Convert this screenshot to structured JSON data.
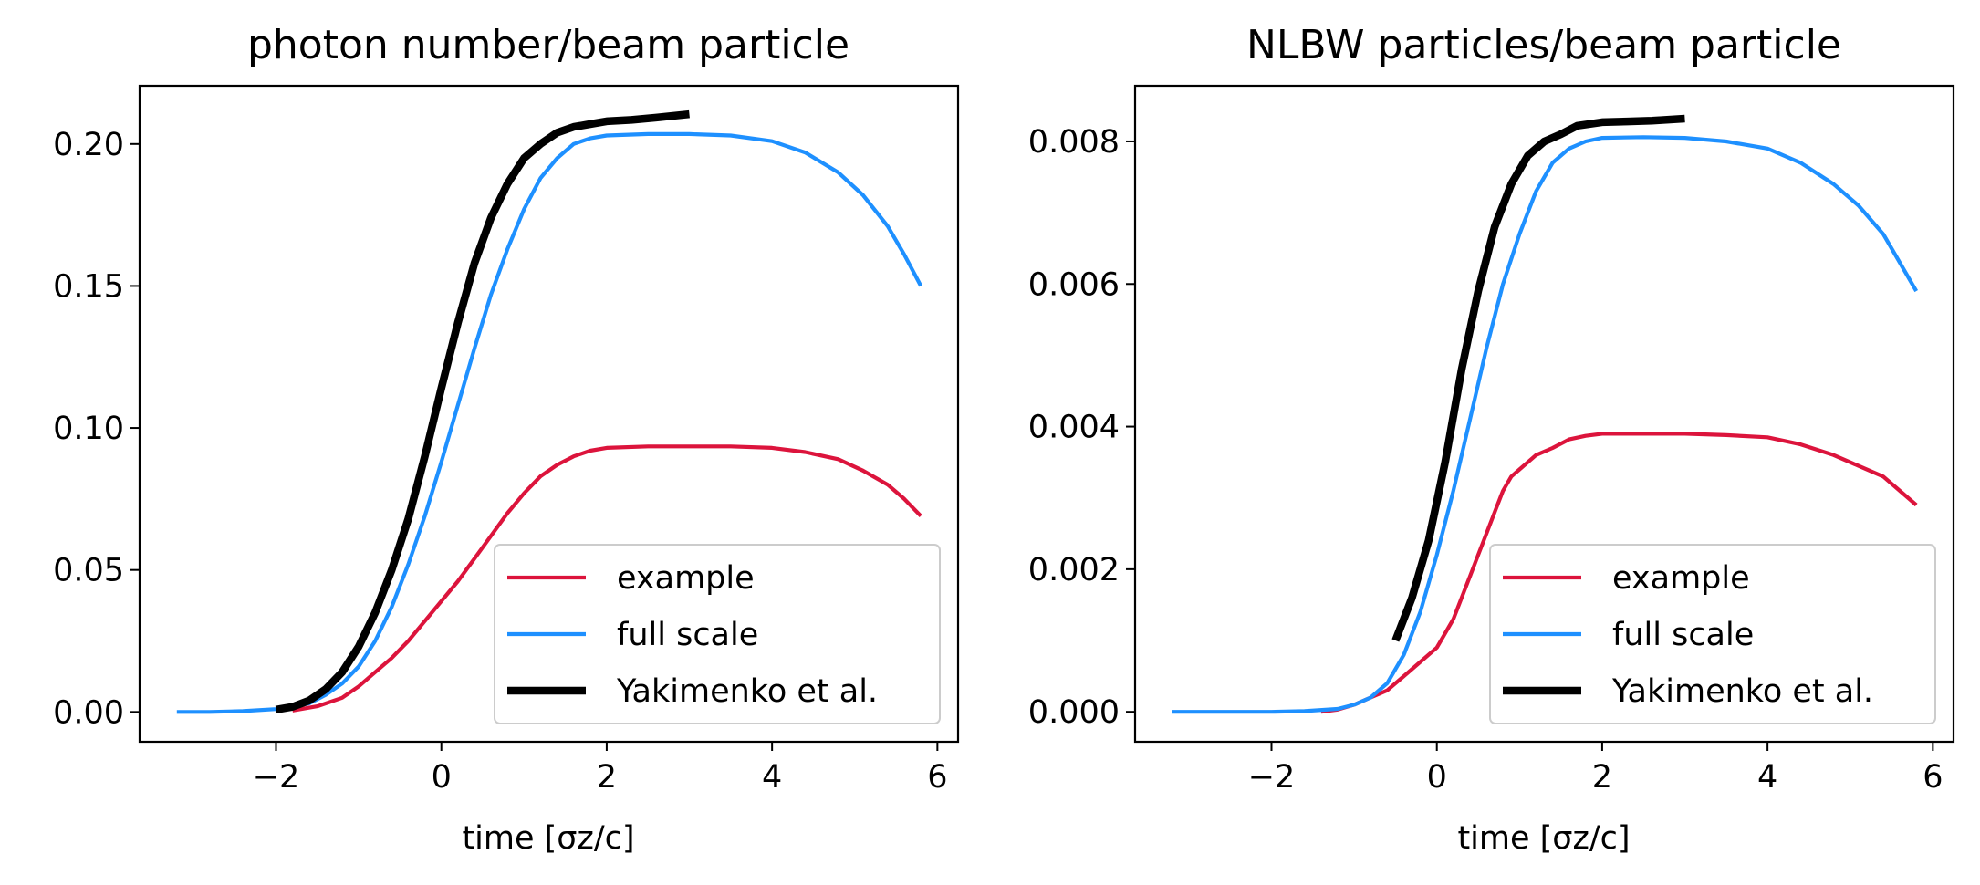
{
  "chart_data": [
    {
      "type": "line",
      "title": "photon number/beam particle",
      "xlabel": "time [σz/c]",
      "ylabel": "",
      "xlim": [
        -3.65,
        6.25
      ],
      "ylim": [
        -0.0105,
        0.2205
      ],
      "xticks": [
        -2,
        0,
        2,
        4,
        6
      ],
      "xtick_labels": [
        "−2",
        "0",
        "2",
        "4",
        "6"
      ],
      "yticks": [
        0.0,
        0.05,
        0.1,
        0.15,
        0.2
      ],
      "ytick_labels": [
        "0.00",
        "0.05",
        "0.10",
        "0.15",
        "0.20"
      ],
      "legend_position": "lower-right",
      "grid": false,
      "series": [
        {
          "name": "example",
          "color": "#dc143c",
          "points": [
            [
              -1.8,
              0.0005
            ],
            [
              -1.5,
              0.002
            ],
            [
              -1.2,
              0.005
            ],
            [
              -1.0,
              0.009
            ],
            [
              -0.8,
              0.014
            ],
            [
              -0.6,
              0.019
            ],
            [
              -0.4,
              0.025
            ],
            [
              -0.2,
              0.032
            ],
            [
              0.0,
              0.039
            ],
            [
              0.2,
              0.046
            ],
            [
              0.4,
              0.054
            ],
            [
              0.6,
              0.062
            ],
            [
              0.8,
              0.07
            ],
            [
              1.0,
              0.077
            ],
            [
              1.2,
              0.083
            ],
            [
              1.4,
              0.087
            ],
            [
              1.6,
              0.09
            ],
            [
              1.8,
              0.092
            ],
            [
              2.0,
              0.093
            ],
            [
              2.5,
              0.0935
            ],
            [
              3.0,
              0.0935
            ],
            [
              3.5,
              0.0935
            ],
            [
              4.0,
              0.093
            ],
            [
              4.4,
              0.0915
            ],
            [
              4.8,
              0.089
            ],
            [
              5.1,
              0.085
            ],
            [
              5.4,
              0.08
            ],
            [
              5.6,
              0.075
            ],
            [
              5.8,
              0.069
            ]
          ]
        },
        {
          "name": "full scale",
          "color": "#1e90ff",
          "points": [
            [
              -3.2,
              0.0
            ],
            [
              -2.8,
              0.0
            ],
            [
              -2.4,
              0.0003
            ],
            [
              -2.0,
              0.001
            ],
            [
              -1.8,
              0.002
            ],
            [
              -1.6,
              0.003
            ],
            [
              -1.4,
              0.006
            ],
            [
              -1.2,
              0.01
            ],
            [
              -1.0,
              0.016
            ],
            [
              -0.8,
              0.025
            ],
            [
              -0.6,
              0.037
            ],
            [
              -0.4,
              0.052
            ],
            [
              -0.2,
              0.069
            ],
            [
              0.0,
              0.088
            ],
            [
              0.2,
              0.108
            ],
            [
              0.4,
              0.128
            ],
            [
              0.6,
              0.147
            ],
            [
              0.8,
              0.163
            ],
            [
              1.0,
              0.177
            ],
            [
              1.2,
              0.188
            ],
            [
              1.4,
              0.195
            ],
            [
              1.6,
              0.2
            ],
            [
              1.8,
              0.202
            ],
            [
              2.0,
              0.203
            ],
            [
              2.5,
              0.2035
            ],
            [
              3.0,
              0.2035
            ],
            [
              3.5,
              0.203
            ],
            [
              4.0,
              0.201
            ],
            [
              4.4,
              0.197
            ],
            [
              4.8,
              0.19
            ],
            [
              5.1,
              0.182
            ],
            [
              5.4,
              0.171
            ],
            [
              5.6,
              0.161
            ],
            [
              5.8,
              0.15
            ]
          ]
        },
        {
          "name": "Yakimenko et al.",
          "color": "#000000",
          "points": [
            [
              -2.0,
              0.0008
            ],
            [
              -1.8,
              0.0018
            ],
            [
              -1.6,
              0.004
            ],
            [
              -1.4,
              0.008
            ],
            [
              -1.2,
              0.014
            ],
            [
              -1.0,
              0.023
            ],
            [
              -0.8,
              0.035
            ],
            [
              -0.6,
              0.05
            ],
            [
              -0.4,
              0.068
            ],
            [
              -0.2,
              0.09
            ],
            [
              0.0,
              0.114
            ],
            [
              0.2,
              0.137
            ],
            [
              0.4,
              0.158
            ],
            [
              0.6,
              0.174
            ],
            [
              0.8,
              0.186
            ],
            [
              1.0,
              0.195
            ],
            [
              1.2,
              0.2
            ],
            [
              1.4,
              0.204
            ],
            [
              1.6,
              0.206
            ],
            [
              1.8,
              0.207
            ],
            [
              2.0,
              0.208
            ],
            [
              2.3,
              0.2085
            ],
            [
              2.6,
              0.2093
            ],
            [
              3.0,
              0.2105
            ]
          ]
        }
      ]
    },
    {
      "type": "line",
      "title": "NLBW particles/beam particle",
      "xlabel": "time [σz/c]",
      "ylabel": "",
      "xlim": [
        -3.65,
        6.25
      ],
      "ylim": [
        -0.00042,
        0.00878
      ],
      "xticks": [
        -2,
        0,
        2,
        4,
        6
      ],
      "xtick_labels": [
        "−2",
        "0",
        "2",
        "4",
        "6"
      ],
      "yticks": [
        0.0,
        0.002,
        0.004,
        0.006,
        0.008
      ],
      "ytick_labels": [
        "0.000",
        "0.002",
        "0.004",
        "0.006",
        "0.008"
      ],
      "legend_position": "lower-right",
      "grid": false,
      "series": [
        {
          "name": "example",
          "color": "#dc143c",
          "points": [
            [
              -1.4,
              0.0
            ],
            [
              -1.2,
              3e-05
            ],
            [
              -1.0,
              0.0001
            ],
            [
              -0.8,
              0.0002
            ],
            [
              -0.6,
              0.0003
            ],
            [
              -0.4,
              0.0005
            ],
            [
              -0.2,
              0.0007
            ],
            [
              0.0,
              0.0009
            ],
            [
              0.1,
              0.0011
            ],
            [
              0.2,
              0.0013
            ],
            [
              0.3,
              0.0016
            ],
            [
              0.4,
              0.0019
            ],
            [
              0.5,
              0.0022
            ],
            [
              0.6,
              0.0025
            ],
            [
              0.7,
              0.0028
            ],
            [
              0.8,
              0.0031
            ],
            [
              0.9,
              0.0033
            ],
            [
              1.0,
              0.0034
            ],
            [
              1.2,
              0.0036
            ],
            [
              1.4,
              0.0037
            ],
            [
              1.6,
              0.00382
            ],
            [
              1.8,
              0.00387
            ],
            [
              2.0,
              0.0039
            ],
            [
              2.5,
              0.0039
            ],
            [
              3.0,
              0.0039
            ],
            [
              3.5,
              0.00388
            ],
            [
              4.0,
              0.00385
            ],
            [
              4.4,
              0.00375
            ],
            [
              4.8,
              0.0036
            ],
            [
              5.1,
              0.00345
            ],
            [
              5.4,
              0.0033
            ],
            [
              5.6,
              0.0031
            ],
            [
              5.8,
              0.0029
            ]
          ]
        },
        {
          "name": "full scale",
          "color": "#1e90ff",
          "points": [
            [
              -3.2,
              0.0
            ],
            [
              -2.8,
              0.0
            ],
            [
              -2.4,
              0.0
            ],
            [
              -2.0,
              0.0
            ],
            [
              -1.6,
              1e-05
            ],
            [
              -1.2,
              4e-05
            ],
            [
              -1.0,
              0.0001
            ],
            [
              -0.8,
              0.0002
            ],
            [
              -0.6,
              0.0004
            ],
            [
              -0.4,
              0.0008
            ],
            [
              -0.2,
              0.0014
            ],
            [
              0.0,
              0.0022
            ],
            [
              0.2,
              0.0031
            ],
            [
              0.4,
              0.0041
            ],
            [
              0.6,
              0.0051
            ],
            [
              0.8,
              0.006
            ],
            [
              1.0,
              0.0067
            ],
            [
              1.2,
              0.0073
            ],
            [
              1.4,
              0.0077
            ],
            [
              1.6,
              0.0079
            ],
            [
              1.8,
              0.008
            ],
            [
              2.0,
              0.00805
            ],
            [
              2.5,
              0.00806
            ],
            [
              3.0,
              0.00805
            ],
            [
              3.5,
              0.008
            ],
            [
              4.0,
              0.0079
            ],
            [
              4.4,
              0.0077
            ],
            [
              4.8,
              0.0074
            ],
            [
              5.1,
              0.0071
            ],
            [
              5.4,
              0.0067
            ],
            [
              5.6,
              0.0063
            ],
            [
              5.8,
              0.0059
            ]
          ]
        },
        {
          "name": "Yakimenko et al.",
          "color": "#000000",
          "points": [
            [
              -0.5,
              0.001
            ],
            [
              -0.3,
              0.0016
            ],
            [
              -0.1,
              0.0024
            ],
            [
              0.1,
              0.0035
            ],
            [
              0.3,
              0.0048
            ],
            [
              0.5,
              0.0059
            ],
            [
              0.7,
              0.0068
            ],
            [
              0.9,
              0.0074
            ],
            [
              1.1,
              0.0078
            ],
            [
              1.3,
              0.008
            ],
            [
              1.5,
              0.0081
            ],
            [
              1.7,
              0.00822
            ],
            [
              2.0,
              0.00827
            ],
            [
              2.3,
              0.00828
            ],
            [
              2.6,
              0.00829
            ],
            [
              3.0,
              0.00832
            ]
          ]
        }
      ]
    }
  ]
}
